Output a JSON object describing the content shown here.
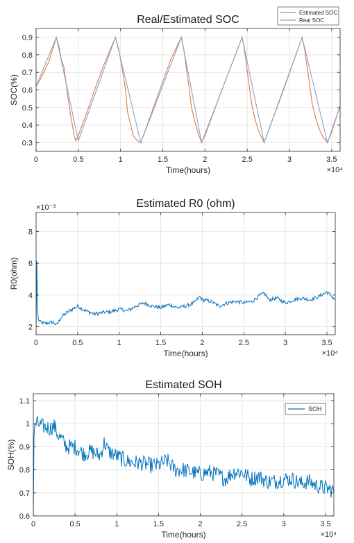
{
  "chart_data": [
    {
      "type": "line",
      "title": "Real/Estimated SOC",
      "xlabel": "Time(hours)",
      "ylabel": "SOC(%)",
      "x_exponent": "×10⁴",
      "xlim": [
        0,
        3.6
      ],
      "ylim": [
        0.25,
        0.95
      ],
      "xticks": [
        0,
        0.5,
        1,
        1.5,
        2,
        2.5,
        3,
        3.5
      ],
      "xtick_labels": [
        "0",
        "0.5",
        "1",
        "1.5",
        "2",
        "2.5",
        "3",
        "3.5"
      ],
      "yticks": [
        0.3,
        0.4,
        0.5,
        0.6,
        0.7,
        0.8,
        0.9
      ],
      "ytick_labels": [
        "0.3",
        "0.4",
        "0.5",
        "0.6",
        "0.7",
        "0.8",
        "0.9"
      ],
      "grid": true,
      "legend_position": "top-right",
      "series": [
        {
          "name": "Estimated SOC",
          "color": "#e07b39",
          "x": [
            0,
            0.05,
            0.15,
            0.24,
            0.27,
            0.3,
            0.33,
            0.36,
            0.38,
            0.41,
            0.43,
            0.45,
            0.47,
            0.5,
            0.6,
            0.7,
            0.8,
            0.94,
            0.98,
            1.02,
            1.06,
            1.08,
            1.12,
            1.15,
            1.2,
            1.24,
            1.3,
            1.45,
            1.6,
            1.72,
            1.75,
            1.78,
            1.81,
            1.84,
            1.88,
            1.92,
            1.96,
            2.0,
            2.2,
            2.44,
            2.47,
            2.5,
            2.53,
            2.56,
            2.6,
            2.64,
            2.7,
            2.9,
            3.15,
            3.18,
            3.21,
            3.24,
            3.27,
            3.31,
            3.35,
            3.4,
            3.45,
            3.5,
            3.6
          ],
          "values": [
            0.62,
            0.66,
            0.76,
            0.9,
            0.85,
            0.77,
            0.73,
            0.62,
            0.55,
            0.45,
            0.4,
            0.34,
            0.31,
            0.34,
            0.47,
            0.61,
            0.74,
            0.9,
            0.83,
            0.72,
            0.6,
            0.48,
            0.4,
            0.34,
            0.31,
            0.3,
            0.38,
            0.58,
            0.78,
            0.9,
            0.83,
            0.72,
            0.62,
            0.5,
            0.42,
            0.35,
            0.3,
            0.34,
            0.6,
            0.9,
            0.82,
            0.71,
            0.6,
            0.5,
            0.42,
            0.36,
            0.3,
            0.56,
            0.9,
            0.83,
            0.73,
            0.63,
            0.52,
            0.44,
            0.38,
            0.33,
            0.3,
            0.36,
            0.51
          ]
        },
        {
          "name": "Real SOC",
          "color": "#7fa7cf",
          "x": [
            0,
            0.24,
            0.5,
            0.94,
            1.24,
            1.72,
            1.96,
            2.44,
            2.7,
            3.15,
            3.45,
            3.6
          ],
          "values": [
            0.62,
            0.9,
            0.31,
            0.9,
            0.3,
            0.9,
            0.3,
            0.9,
            0.3,
            0.9,
            0.3,
            0.51
          ]
        }
      ]
    },
    {
      "type": "line",
      "title": "Estimated R0 (ohm)",
      "xlabel": "Time(hours)",
      "ylabel": "R0(ohm)",
      "x_exponent": "×10⁴",
      "y_exponent": "×10⁻³",
      "xlim": [
        0,
        3.6
      ],
      "ylim": [
        1.5,
        9.2
      ],
      "xticks": [
        0,
        0.5,
        1,
        1.5,
        2,
        2.5,
        3,
        3.5
      ],
      "xtick_labels": [
        "0",
        "0.5",
        "1",
        "1.5",
        "2",
        "2.5",
        "3",
        "3.5"
      ],
      "yticks": [
        2,
        4,
        6,
        8
      ],
      "ytick_labels": [
        "2",
        "4",
        "6",
        "8"
      ],
      "grid": true,
      "series": [
        {
          "name": "",
          "color": "#0072bd",
          "x": [
            0,
            0.005,
            0.02,
            0.05,
            0.1,
            0.2,
            0.25,
            0.3,
            0.4,
            0.5,
            0.6,
            0.7,
            0.8,
            0.9,
            1.0,
            1.1,
            1.2,
            1.3,
            1.4,
            1.5,
            1.6,
            1.7,
            1.8,
            1.9,
            1.97,
            2.0,
            2.1,
            2.2,
            2.3,
            2.4,
            2.5,
            2.6,
            2.7,
            2.75,
            2.8,
            2.9,
            3.0,
            3.1,
            3.2,
            3.3,
            3.4,
            3.5,
            3.6
          ],
          "values": [
            2.0,
            7.2,
            2.5,
            2.3,
            2.2,
            2.3,
            2.1,
            2.6,
            3.0,
            3.3,
            3.0,
            2.8,
            2.9,
            2.95,
            3.1,
            3.0,
            3.3,
            3.5,
            3.3,
            3.2,
            3.4,
            3.2,
            3.3,
            3.5,
            3.9,
            3.7,
            3.6,
            3.3,
            3.5,
            3.6,
            3.5,
            3.6,
            4.0,
            4.1,
            3.7,
            3.8,
            3.5,
            3.7,
            3.8,
            3.7,
            3.9,
            4.2,
            3.7
          ]
        }
      ]
    },
    {
      "type": "line",
      "title": "Estimated SOH",
      "xlabel": "Time(hours)",
      "ylabel": "SOH(%)",
      "x_exponent": "×10⁴",
      "xlim": [
        0,
        3.6
      ],
      "ylim": [
        0.6,
        1.13
      ],
      "xticks": [
        0,
        0.5,
        1,
        1.5,
        2,
        2.5,
        3,
        3.5
      ],
      "xtick_labels": [
        "0",
        "0.5",
        "1",
        "1.5",
        "2",
        "2.5",
        "3",
        "3.5"
      ],
      "yticks": [
        0.6,
        0.7,
        0.8,
        0.9,
        1,
        1.1
      ],
      "ytick_labels": [
        "0.6",
        "0.7",
        "0.8",
        "0.9",
        "1",
        "1.1"
      ],
      "grid": true,
      "legend_position": "top-right",
      "series": [
        {
          "name": "SOH",
          "color": "#0072bd",
          "x": [
            0,
            0.01,
            0.05,
            0.1,
            0.2,
            0.25,
            0.3,
            0.4,
            0.5,
            0.6,
            0.7,
            0.8,
            0.85,
            0.9,
            1.0,
            1.1,
            1.2,
            1.3,
            1.4,
            1.5,
            1.6,
            1.7,
            1.8,
            1.9,
            2.0,
            2.1,
            2.2,
            2.3,
            2.4,
            2.5,
            2.6,
            2.7,
            2.8,
            2.9,
            3.0,
            3.1,
            3.2,
            3.3,
            3.4,
            3.5,
            3.6
          ],
          "values": [
            0.62,
            1.0,
            1.0,
            0.99,
            0.98,
            0.99,
            0.95,
            0.9,
            0.9,
            0.87,
            0.88,
            0.86,
            0.92,
            0.88,
            0.86,
            0.84,
            0.83,
            0.83,
            0.82,
            0.82,
            0.84,
            0.8,
            0.8,
            0.79,
            0.78,
            0.79,
            0.78,
            0.76,
            0.79,
            0.79,
            0.76,
            0.77,
            0.75,
            0.75,
            0.76,
            0.76,
            0.74,
            0.75,
            0.73,
            0.72,
            0.71
          ]
        }
      ]
    }
  ]
}
